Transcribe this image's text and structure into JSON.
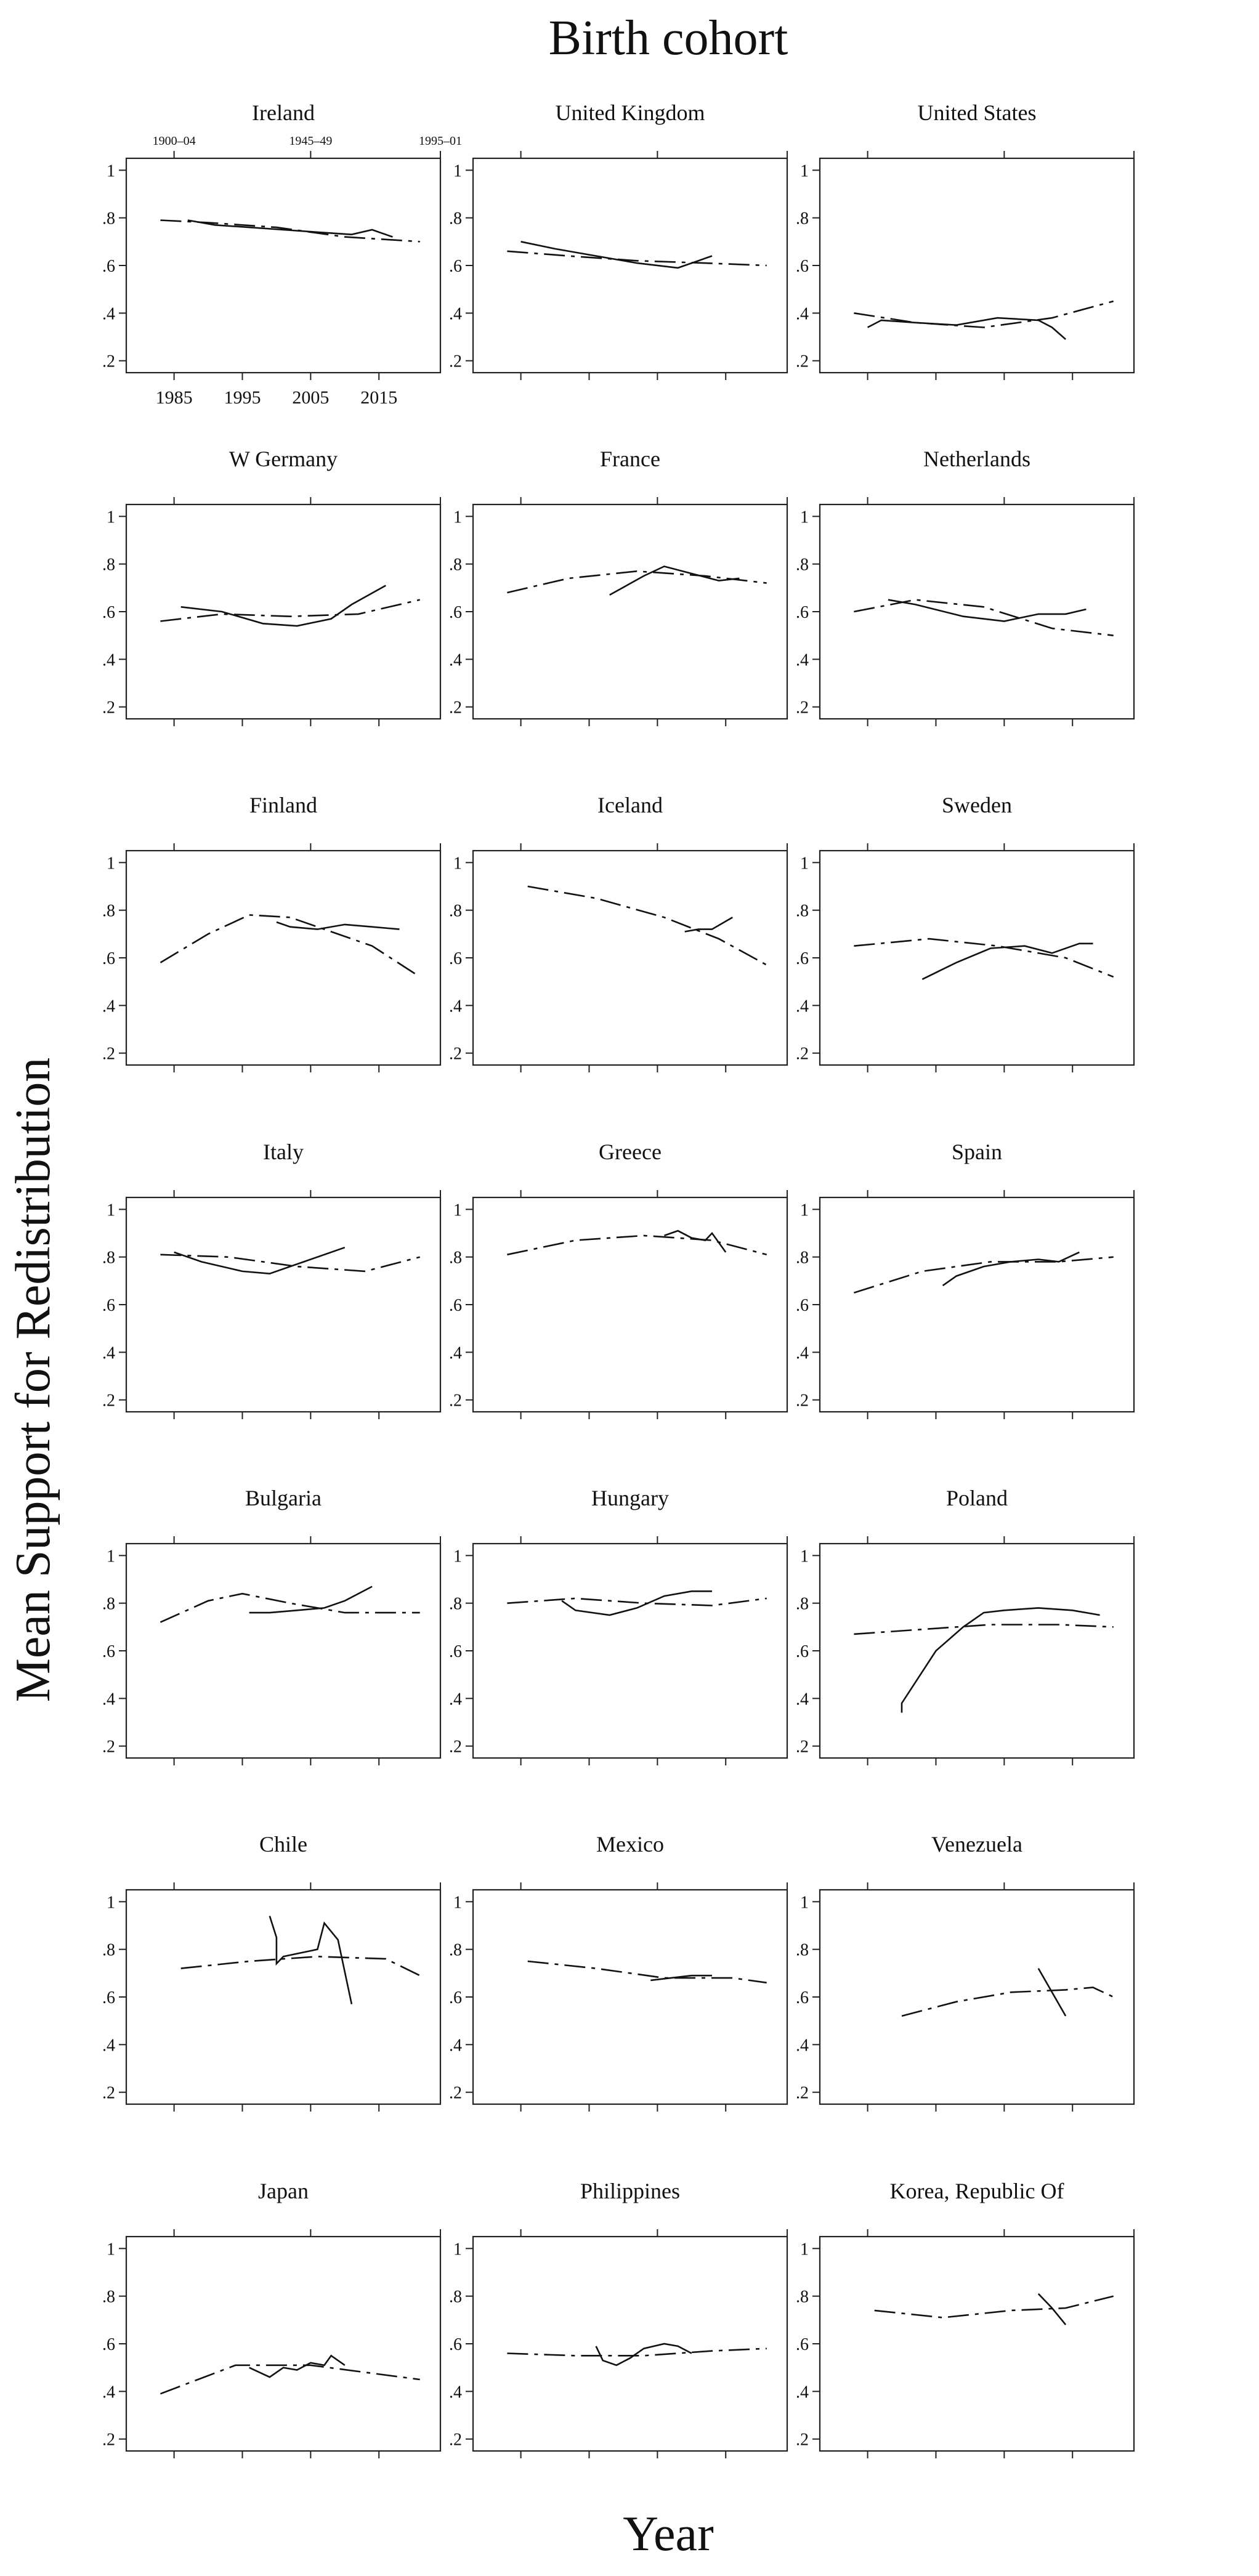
{
  "figure": {
    "top_title": "Birth cohort",
    "ylabel": "Mean Support for Redistribution",
    "xlabel": "Year",
    "yticks": [
      {
        "v": 0.2,
        "label": ".2"
      },
      {
        "v": 0.4,
        "label": ".4"
      },
      {
        "v": 0.6,
        "label": ".6"
      },
      {
        "v": 0.8,
        "label": ".8"
      },
      {
        "v": 1.0,
        "label": "1"
      }
    ],
    "ylim": [
      0.15,
      1.05
    ],
    "xlim": [
      1978,
      2024
    ],
    "xticks": [
      {
        "v": 1985,
        "label": "1985"
      },
      {
        "v": 1995,
        "label": "1995"
      },
      {
        "v": 2005,
        "label": "2005"
      },
      {
        "v": 2015,
        "label": "2015"
      }
    ],
    "cohort_ticks": [
      {
        "v": 1985,
        "label": "1900–04"
      },
      {
        "v": 2005,
        "label": "1945–49"
      },
      {
        "v": 2024,
        "label": "1995–01"
      }
    ],
    "legend": {
      "solid": "Year",
      "dashed": "Birth cohort"
    }
  },
  "chart_data": [
    {
      "type": "line",
      "title": "Ireland",
      "series": [
        {
          "name": "Year",
          "style": "solid",
          "x": [
            1987,
            1991,
            1996,
            2001,
            2006,
            2011,
            2014,
            2017
          ],
          "y": [
            0.79,
            0.77,
            0.76,
            0.75,
            0.74,
            0.73,
            0.75,
            0.72
          ]
        },
        {
          "name": "Birth cohort",
          "style": "dashed",
          "x": [
            1983,
            1990,
            2000,
            2010,
            2021
          ],
          "y": [
            0.79,
            0.78,
            0.76,
            0.72,
            0.7
          ]
        }
      ]
    },
    {
      "type": "line",
      "title": "United Kingdom",
      "series": [
        {
          "name": "Year",
          "style": "solid",
          "x": [
            1985,
            1990,
            1996,
            2002,
            2008,
            2013
          ],
          "y": [
            0.7,
            0.67,
            0.64,
            0.61,
            0.59,
            0.64
          ]
        },
        {
          "name": "Birth cohort",
          "style": "dashed",
          "x": [
            1983,
            1992,
            2002,
            2012,
            2021
          ],
          "y": [
            0.66,
            0.64,
            0.62,
            0.61,
            0.6
          ]
        }
      ]
    },
    {
      "type": "line",
      "title": "United States",
      "series": [
        {
          "name": "Year",
          "style": "solid",
          "x": [
            1985,
            1987,
            1992,
            1998,
            2004,
            2010,
            2012,
            2014
          ],
          "y": [
            0.34,
            0.37,
            0.36,
            0.35,
            0.38,
            0.37,
            0.34,
            0.29
          ]
        },
        {
          "name": "Birth cohort",
          "style": "dashed",
          "x": [
            1983,
            1992,
            2002,
            2012,
            2021
          ],
          "y": [
            0.4,
            0.36,
            0.34,
            0.38,
            0.45
          ]
        }
      ]
    },
    {
      "type": "line",
      "title": "W Germany",
      "series": [
        {
          "name": "Year",
          "style": "solid",
          "x": [
            1986,
            1992,
            1998,
            2003,
            2008,
            2011,
            2016
          ],
          "y": [
            0.62,
            0.6,
            0.55,
            0.54,
            0.57,
            0.63,
            0.71
          ]
        },
        {
          "name": "Birth cohort",
          "style": "dashed",
          "x": [
            1983,
            1992,
            2002,
            2012,
            2021
          ],
          "y": [
            0.56,
            0.59,
            0.58,
            0.59,
            0.65
          ]
        }
      ]
    },
    {
      "type": "line",
      "title": "France",
      "series": [
        {
          "name": "Year",
          "style": "solid",
          "x": [
            1998,
            2003,
            2006,
            2010,
            2014,
            2017
          ],
          "y": [
            0.67,
            0.75,
            0.79,
            0.76,
            0.73,
            0.74
          ]
        },
        {
          "name": "Birth cohort",
          "style": "dashed",
          "x": [
            1983,
            1992,
            2002,
            2012,
            2021
          ],
          "y": [
            0.68,
            0.74,
            0.77,
            0.75,
            0.72
          ]
        }
      ]
    },
    {
      "type": "line",
      "title": "Netherlands",
      "series": [
        {
          "name": "Year",
          "style": "solid",
          "x": [
            1988,
            1992,
            1999,
            2005,
            2010,
            2014,
            2017
          ],
          "y": [
            0.65,
            0.63,
            0.58,
            0.56,
            0.59,
            0.59,
            0.61
          ]
        },
        {
          "name": "Birth cohort",
          "style": "dashed",
          "x": [
            1983,
            1992,
            2002,
            2012,
            2021
          ],
          "y": [
            0.6,
            0.65,
            0.62,
            0.53,
            0.5
          ]
        }
      ]
    },
    {
      "type": "line",
      "title": "Finland",
      "series": [
        {
          "name": "Year",
          "style": "solid",
          "x": [
            2000,
            2002,
            2006,
            2010,
            2014,
            2018
          ],
          "y": [
            0.75,
            0.73,
            0.72,
            0.74,
            0.73,
            0.72
          ]
        },
        {
          "name": "Birth cohort",
          "style": "dashed",
          "x": [
            1983,
            1990,
            1996,
            2002,
            2008,
            2014,
            2021
          ],
          "y": [
            0.58,
            0.7,
            0.78,
            0.77,
            0.71,
            0.65,
            0.52
          ]
        }
      ]
    },
    {
      "type": "line",
      "title": "Iceland",
      "series": [
        {
          "name": "Year",
          "style": "solid",
          "x": [
            2009,
            2011,
            2013,
            2016
          ],
          "y": [
            0.71,
            0.72,
            0.72,
            0.77
          ]
        },
        {
          "name": "Birth cohort",
          "style": "dashed",
          "x": [
            1986,
            1996,
            2006,
            2014,
            2021
          ],
          "y": [
            0.9,
            0.85,
            0.77,
            0.68,
            0.57
          ]
        }
      ]
    },
    {
      "type": "line",
      "title": "Sweden",
      "series": [
        {
          "name": "Year",
          "style": "solid",
          "x": [
            1993,
            1998,
            2003,
            2008,
            2012,
            2016,
            2018
          ],
          "y": [
            0.51,
            0.58,
            0.64,
            0.65,
            0.62,
            0.66,
            0.66
          ]
        },
        {
          "name": "Birth cohort",
          "style": "dashed",
          "x": [
            1983,
            1994,
            2004,
            2014,
            2021
          ],
          "y": [
            0.65,
            0.68,
            0.65,
            0.6,
            0.52
          ]
        }
      ]
    },
    {
      "type": "line",
      "title": "Italy",
      "series": [
        {
          "name": "Year",
          "style": "solid",
          "x": [
            1985,
            1989,
            1995,
            1999,
            2004,
            2010
          ],
          "y": [
            0.82,
            0.78,
            0.74,
            0.73,
            0.78,
            0.84
          ]
        },
        {
          "name": "Birth cohort",
          "style": "dashed",
          "x": [
            1983,
            1993,
            2003,
            2013,
            2021
          ],
          "y": [
            0.81,
            0.8,
            0.76,
            0.74,
            0.8
          ]
        }
      ]
    },
    {
      "type": "line",
      "title": "Greece",
      "series": [
        {
          "name": "Year",
          "style": "solid",
          "x": [
            2006,
            2008,
            2010,
            2012,
            2013,
            2015
          ],
          "y": [
            0.89,
            0.91,
            0.88,
            0.87,
            0.9,
            0.82
          ]
        },
        {
          "name": "Birth cohort",
          "style": "dashed",
          "x": [
            1983,
            1993,
            2003,
            2013,
            2021
          ],
          "y": [
            0.81,
            0.87,
            0.89,
            0.87,
            0.81
          ]
        }
      ]
    },
    {
      "type": "line",
      "title": "Spain",
      "series": [
        {
          "name": "Year",
          "style": "solid",
          "x": [
            1996,
            1998,
            2002,
            2006,
            2010,
            2013,
            2016
          ],
          "y": [
            0.68,
            0.72,
            0.76,
            0.78,
            0.79,
            0.78,
            0.82
          ]
        },
        {
          "name": "Birth cohort",
          "style": "dashed",
          "x": [
            1983,
            1993,
            2003,
            2013,
            2021
          ],
          "y": [
            0.65,
            0.74,
            0.78,
            0.78,
            0.8
          ]
        }
      ]
    },
    {
      "type": "line",
      "title": "Bulgaria",
      "series": [
        {
          "name": "Year",
          "style": "solid",
          "x": [
            1996,
            1999,
            2003,
            2007,
            2010,
            2014
          ],
          "y": [
            0.76,
            0.76,
            0.77,
            0.78,
            0.81,
            0.87
          ]
        },
        {
          "name": "Birth cohort",
          "style": "dashed",
          "x": [
            1983,
            1990,
            1995,
            2002,
            2010,
            2021
          ],
          "y": [
            0.72,
            0.81,
            0.84,
            0.8,
            0.76,
            0.76
          ]
        }
      ]
    },
    {
      "type": "line",
      "title": "Hungary",
      "series": [
        {
          "name": "Year",
          "style": "solid",
          "x": [
            1991,
            1993,
            1998,
            2002,
            2006,
            2010,
            2013
          ],
          "y": [
            0.81,
            0.77,
            0.75,
            0.78,
            0.83,
            0.85,
            0.85
          ]
        },
        {
          "name": "Birth cohort",
          "style": "dashed",
          "x": [
            1983,
            1993,
            2003,
            2013,
            2021
          ],
          "y": [
            0.8,
            0.82,
            0.8,
            0.79,
            0.82
          ]
        }
      ]
    },
    {
      "type": "line",
      "title": "Poland",
      "series": [
        {
          "name": "Year",
          "style": "solid",
          "x": [
            1990,
            1990,
            1995,
            1999,
            2002,
            2005,
            2010,
            2015,
            2019
          ],
          "y": [
            0.34,
            0.38,
            0.6,
            0.7,
            0.76,
            0.77,
            0.78,
            0.77,
            0.75
          ]
        },
        {
          "name": "Birth cohort",
          "style": "dashed",
          "x": [
            1983,
            1993,
            2003,
            2013,
            2021
          ],
          "y": [
            0.67,
            0.69,
            0.71,
            0.71,
            0.7
          ]
        }
      ]
    },
    {
      "type": "line",
      "title": "Chile",
      "series": [
        {
          "name": "Year",
          "style": "solid",
          "x": [
            1999,
            2000,
            2000,
            2001,
            2006,
            2007,
            2009,
            2011
          ],
          "y": [
            0.94,
            0.85,
            0.74,
            0.77,
            0.8,
            0.91,
            0.84,
            0.57
          ]
        },
        {
          "name": "Birth cohort",
          "style": "dashed",
          "x": [
            1986,
            1996,
            2006,
            2016,
            2021
          ],
          "y": [
            0.72,
            0.75,
            0.77,
            0.76,
            0.69
          ]
        }
      ]
    },
    {
      "type": "line",
      "title": "Mexico",
      "series": [
        {
          "name": "Year",
          "style": "solid",
          "x": [
            2004,
            2007,
            2010,
            2013
          ],
          "y": [
            0.67,
            0.68,
            0.69,
            0.69
          ]
        },
        {
          "name": "Birth cohort",
          "style": "dashed",
          "x": [
            1986,
            1996,
            2006,
            2016,
            2021
          ],
          "y": [
            0.75,
            0.72,
            0.68,
            0.68,
            0.66
          ]
        }
      ]
    },
    {
      "type": "line",
      "title": "Venezuela",
      "series": [
        {
          "name": "Year",
          "style": "solid",
          "x": [
            2010,
            2012,
            2014
          ],
          "y": [
            0.72,
            0.62,
            0.52
          ]
        },
        {
          "name": "Birth cohort",
          "style": "dashed",
          "x": [
            1990,
            1998,
            2006,
            2014,
            2018,
            2021
          ],
          "y": [
            0.52,
            0.58,
            0.62,
            0.63,
            0.64,
            0.6
          ]
        }
      ]
    },
    {
      "type": "line",
      "title": "Japan",
      "series": [
        {
          "name": "Year",
          "style": "solid",
          "x": [
            1996,
            1999,
            2001,
            2003,
            2005,
            2007,
            2008,
            2010
          ],
          "y": [
            0.5,
            0.46,
            0.5,
            0.49,
            0.52,
            0.51,
            0.55,
            0.51
          ]
        },
        {
          "name": "Birth cohort",
          "style": "dashed",
          "x": [
            1983,
            1994,
            2005,
            2013,
            2021
          ],
          "y": [
            0.39,
            0.51,
            0.51,
            0.48,
            0.45
          ]
        }
      ]
    },
    {
      "type": "line",
      "title": "Philippines",
      "series": [
        {
          "name": "Year",
          "style": "solid",
          "x": [
            1996,
            1997,
            1999,
            2001,
            2003,
            2006,
            2008,
            2010
          ],
          "y": [
            0.59,
            0.53,
            0.51,
            0.54,
            0.58,
            0.6,
            0.59,
            0.56
          ]
        },
        {
          "name": "Birth cohort",
          "style": "dashed",
          "x": [
            1983,
            1993,
            2003,
            2013,
            2021
          ],
          "y": [
            0.56,
            0.55,
            0.55,
            0.57,
            0.58
          ]
        }
      ]
    },
    {
      "type": "line",
      "title": "Korea, Republic Of",
      "series": [
        {
          "name": "Year",
          "style": "solid",
          "x": [
            2010,
            2012,
            2014
          ],
          "y": [
            0.81,
            0.75,
            0.68
          ]
        },
        {
          "name": "Birth cohort",
          "style": "dashed",
          "x": [
            1986,
            1996,
            2006,
            2014,
            2021
          ],
          "y": [
            0.74,
            0.71,
            0.74,
            0.75,
            0.8
          ]
        }
      ]
    }
  ]
}
